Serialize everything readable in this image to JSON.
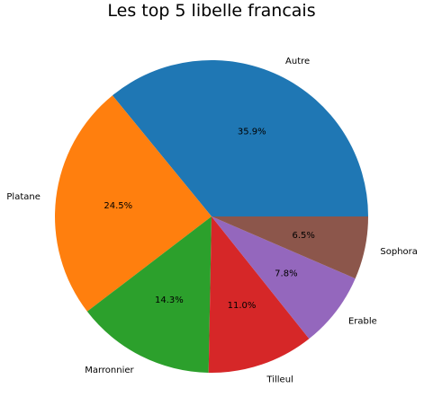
{
  "chart_data": {
    "type": "pie",
    "title": "Les top 5 libelle francais",
    "start_angle_deg": 0,
    "direction": "counterclockwise",
    "slices": [
      {
        "label": "Autre",
        "value": 35.9,
        "pct_label": "35.9%",
        "color": "#1f77b4"
      },
      {
        "label": "Platane",
        "value": 24.5,
        "pct_label": "24.5%",
        "color": "#ff7f0e"
      },
      {
        "label": "Marronnier",
        "value": 14.3,
        "pct_label": "14.3%",
        "color": "#2ca02c"
      },
      {
        "label": "Tilleul",
        "value": 11.0,
        "pct_label": "11.0%",
        "color": "#d62728"
      },
      {
        "label": "Erable",
        "value": 7.8,
        "pct_label": "7.8%",
        "color": "#9467bd"
      },
      {
        "label": "Sophora",
        "value": 6.5,
        "pct_label": "6.5%",
        "color": "#8c564b"
      }
    ]
  }
}
